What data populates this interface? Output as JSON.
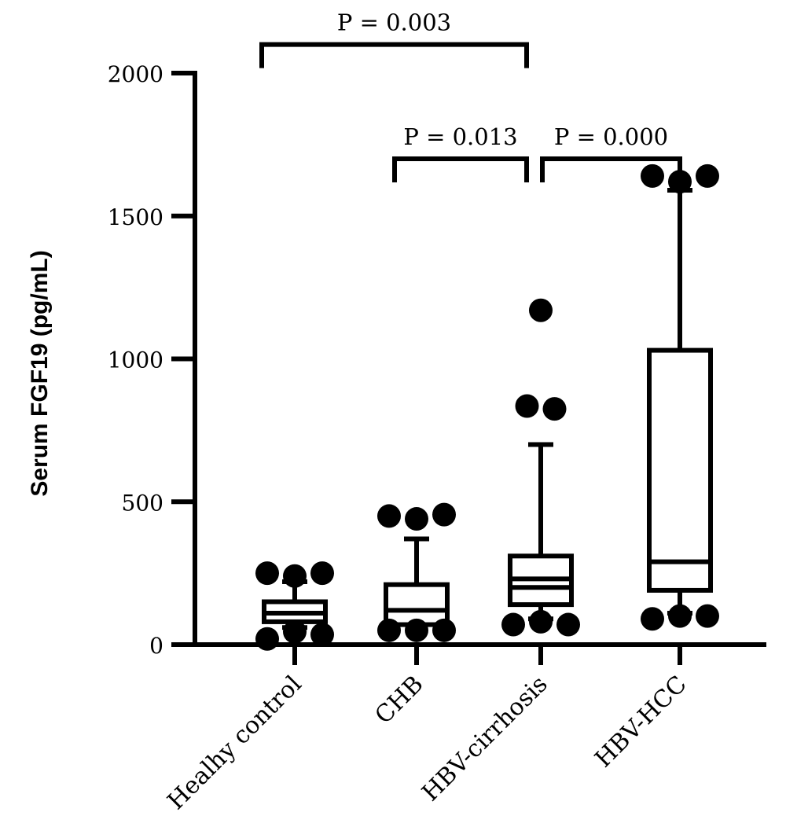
{
  "chart_data": {
    "type": "boxplot",
    "ylabel": "Serum FGF19 (pg/mL)",
    "ylim": [
      0,
      2000
    ],
    "yticks": [
      0,
      500,
      1000,
      1500,
      2000
    ],
    "grid": false,
    "categories": [
      "Healhy control",
      "CHB",
      "HBV-cirrhosis",
      "HBV-HCC"
    ],
    "boxes": [
      {
        "name": "Healhy control",
        "whisker_low": 60,
        "q1": 80,
        "median": 110,
        "q3": 150,
        "whisker_high": 220,
        "outliers": [
          [
            -0.2,
            20
          ],
          [
            0.2,
            35
          ],
          [
            0.0,
            45
          ],
          [
            -0.2,
            250
          ],
          [
            0.0,
            240
          ],
          [
            0.2,
            250
          ]
        ]
      },
      {
        "name": "CHB",
        "whisker_low": 70,
        "q1": 70,
        "median": 120,
        "q3": 210,
        "whisker_high": 370,
        "outliers": [
          [
            -0.2,
            50
          ],
          [
            0.0,
            50
          ],
          [
            0.2,
            50
          ],
          [
            -0.2,
            450
          ],
          [
            0.0,
            440
          ],
          [
            0.2,
            455
          ]
        ]
      },
      {
        "name": "HBV-cirrhosis",
        "whisker_low": 90,
        "q1": 140,
        "median": 200,
        "q3": 310,
        "whisker_high": 700,
        "mean": 230,
        "outliers": [
          [
            -0.2,
            70
          ],
          [
            0.0,
            80
          ],
          [
            0.2,
            70
          ],
          [
            -0.1,
            835
          ],
          [
            0.1,
            825
          ],
          [
            0.0,
            1170
          ]
        ]
      },
      {
        "name": "HBV-HCC",
        "whisker_low": 110,
        "q1": 190,
        "median": 290,
        "q3": 1030,
        "whisker_high": 1590,
        "outliers": [
          [
            -0.2,
            90
          ],
          [
            0.0,
            100
          ],
          [
            0.2,
            100
          ],
          [
            -0.2,
            1640
          ],
          [
            0.0,
            1620
          ],
          [
            0.2,
            1640
          ]
        ]
      }
    ],
    "comparisons": [
      {
        "from": 0,
        "to": 2,
        "label": "P = 0.003",
        "y": 2100
      },
      {
        "from": 1,
        "to": 2,
        "label": "P = 0.013",
        "y": 1700
      },
      {
        "from": 2,
        "to": 3,
        "label": "P = 0.000",
        "y": 1700
      }
    ]
  }
}
